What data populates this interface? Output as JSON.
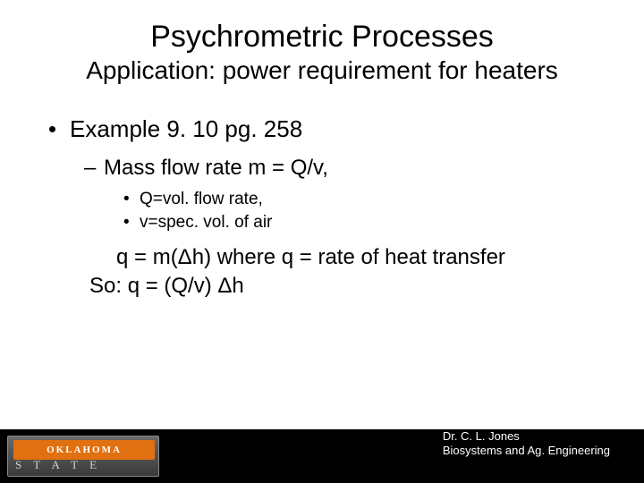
{
  "title": "Psychrometric Processes",
  "subtitle": "Application:  power requirement for heaters",
  "bullets": {
    "l1": "Example 9. 10 pg. 258",
    "l2": "Mass flow rate m = Q/v,",
    "l3a": "Q=vol. flow rate,",
    "l3b": "v=spec. vol. of air",
    "p1": "q = m(Δh)  where q = rate of heat transfer",
    "p2": "So:  q = (Q/v) Δh"
  },
  "logo": {
    "top": "OKLAHOMA",
    "bottom": "S  T  A  T  E"
  },
  "credit": {
    "line1": "Dr. C. L. Jones",
    "line2": "Biosystems and Ag. Engineering"
  }
}
